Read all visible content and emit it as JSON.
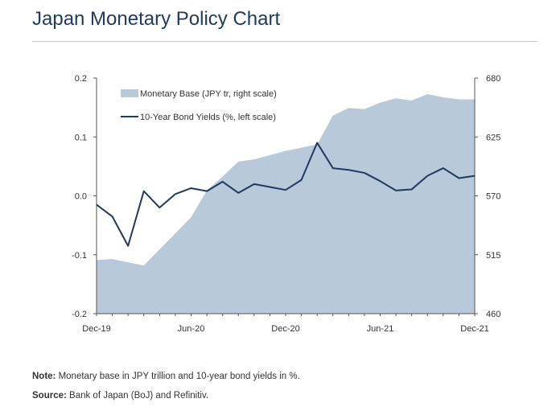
{
  "page": {
    "title": "Japan Monetary Policy Chart",
    "note_label": "Note:",
    "note_text": " Monetary base in JPY trillion and 10-year bond yields in %.",
    "source_label": "Source:",
    "source_text": " Bank of Japan (BoJ) and Refinitiv."
  },
  "chart_data": {
    "type": "line",
    "x": [
      "Dec-19",
      "Jan-20",
      "Feb-20",
      "Mar-20",
      "Apr-20",
      "May-20",
      "Jun-20",
      "Jul-20",
      "Aug-20",
      "Sep-20",
      "Oct-20",
      "Nov-20",
      "Dec-20",
      "Jan-21",
      "Feb-21",
      "Mar-21",
      "Apr-21",
      "May-21",
      "Jun-21",
      "Jul-21",
      "Aug-21",
      "Sep-21",
      "Oct-21",
      "Nov-21",
      "Dec-21"
    ],
    "x_tick_labels": [
      "Dec-19",
      "Jun-20",
      "Dec-20",
      "Jun-21",
      "Dec-21"
    ],
    "series": [
      {
        "name": "Monetary Base (JPY tr, right scale)",
        "render": "area",
        "axis": "right",
        "color": "#b8c9da",
        "values": [
          510,
          511,
          508,
          505,
          520,
          535,
          550,
          575,
          588,
          602,
          604,
          608,
          612,
          615,
          618,
          645,
          652,
          651,
          657,
          661,
          659,
          665,
          662,
          660,
          660
        ]
      },
      {
        "name": "10-Year Bond Yields (%, left scale)",
        "render": "line",
        "axis": "left",
        "color": "#1f3a5f",
        "values": [
          -0.015,
          -0.035,
          -0.085,
          0.008,
          -0.02,
          0.003,
          0.013,
          0.008,
          0.024,
          0.005,
          0.02,
          0.015,
          0.01,
          0.027,
          0.09,
          0.047,
          0.044,
          0.039,
          0.025,
          0.009,
          0.011,
          0.034,
          0.047,
          0.03,
          0.034
        ]
      }
    ],
    "y_left": {
      "min": -0.2,
      "max": 0.2,
      "ticks": [
        0.2,
        0.1,
        0.0,
        -0.1,
        -0.2
      ],
      "tick_labels": [
        "0.2",
        "0.1",
        "0.0",
        "-0.1",
        "-0.2"
      ]
    },
    "y_right": {
      "min": 460,
      "max": 680,
      "ticks": [
        680,
        625,
        570,
        515,
        460
      ],
      "tick_labels": [
        "680",
        "625",
        "570",
        "515",
        "460"
      ]
    },
    "legend": {
      "placement": "top-left",
      "entries": [
        "Monetary Base (JPY tr, right scale)",
        "10-Year Bond Yields (%, left scale)"
      ]
    },
    "grid": false
  }
}
